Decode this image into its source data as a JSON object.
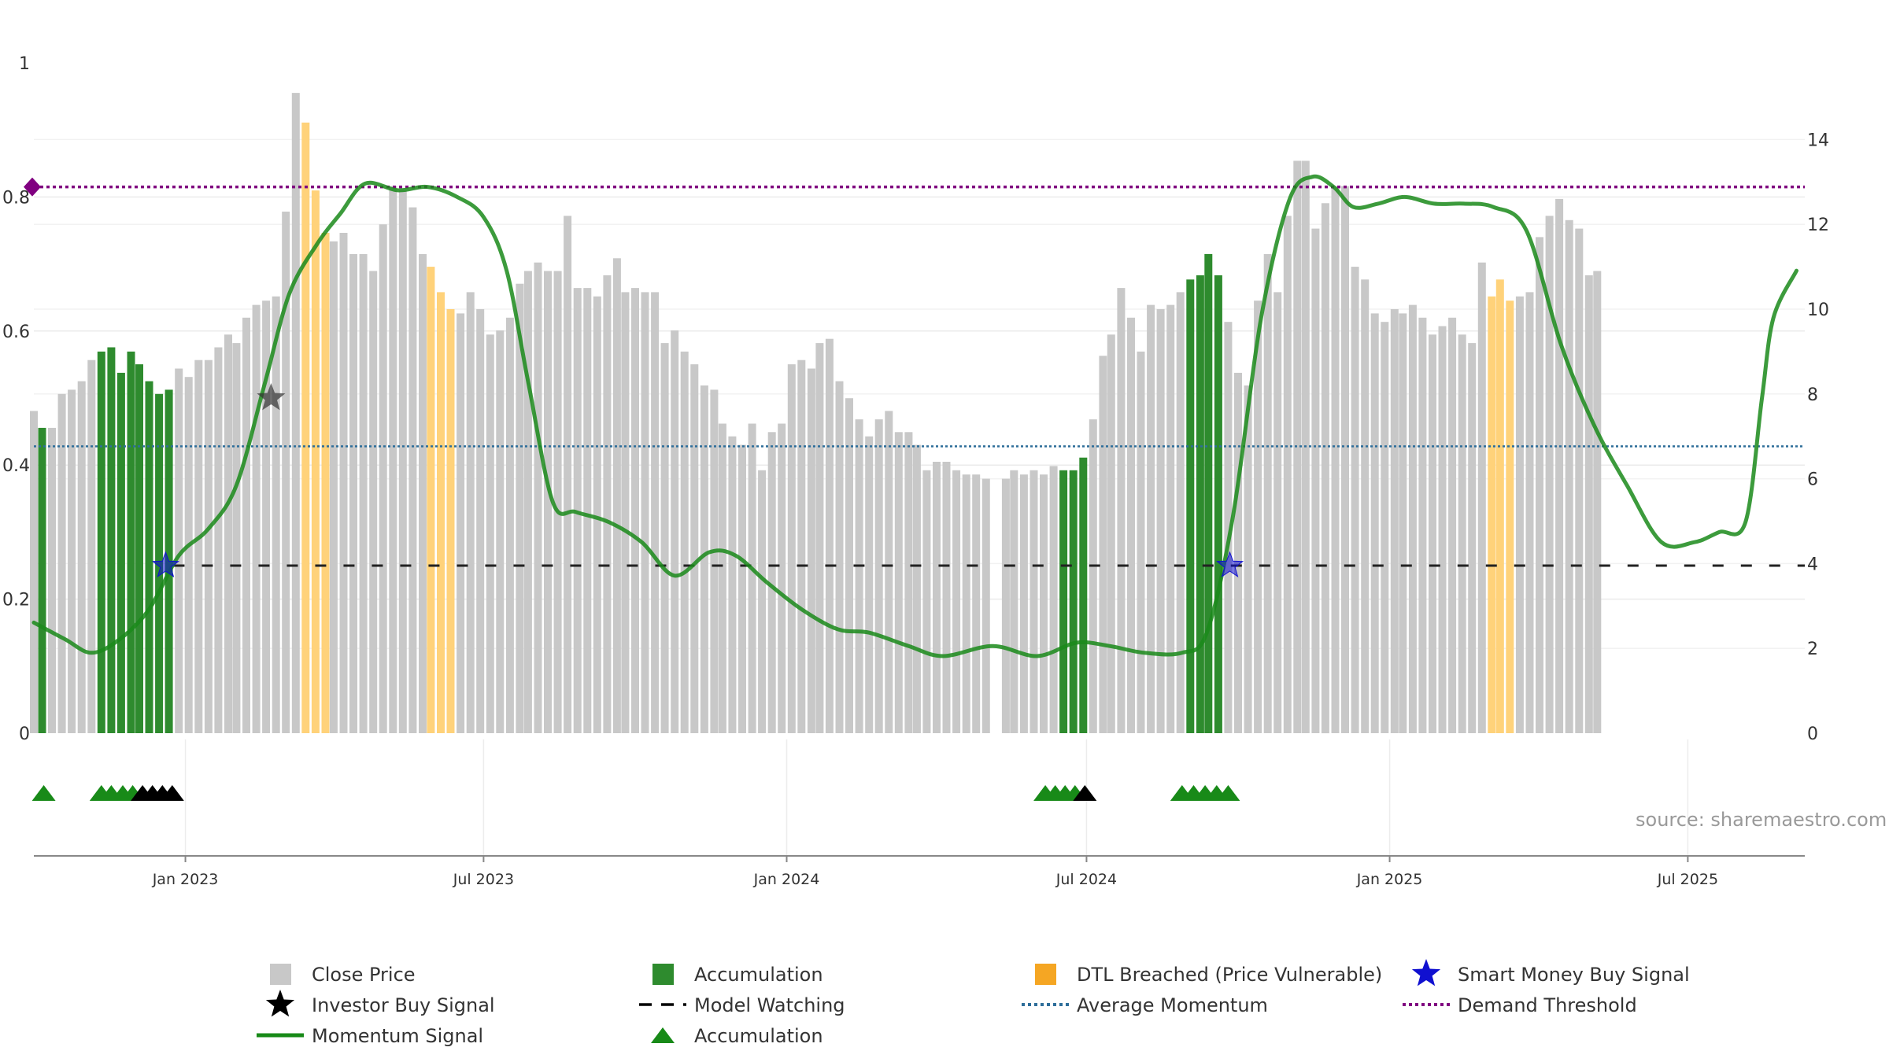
{
  "chart_data": {
    "type": "bar",
    "title": "",
    "source_label": "source: sharemaestro.com",
    "colors": {
      "close_price": "#c8c8c8",
      "accumulation": "#2e8b2e",
      "dtl_breached": "#ffd27a",
      "momentum": "#1a8a1a",
      "model_watching": "#222222",
      "average_momentum": "#2e6e9a",
      "demand_threshold": "#800080",
      "smart_money": "#1010d0",
      "investor_buy": "#333333"
    },
    "left_axis": {
      "ylim": [
        0,
        1
      ],
      "ticks": [
        "0",
        "0.2",
        "0.4",
        "0.6",
        "0.8",
        "1"
      ]
    },
    "right_axis": {
      "ylim": [
        0,
        15.8
      ],
      "ticks": [
        "0",
        "2",
        "4",
        "6",
        "8",
        "10",
        "12",
        "14"
      ]
    },
    "x_axis": {
      "start": "2022-10-01",
      "end": "2025-09-10",
      "ticks": [
        {
          "date": "2023-01-01",
          "label": "Jan 2023"
        },
        {
          "date": "2023-07-01",
          "label": "Jul 2023"
        },
        {
          "date": "2024-01-01",
          "label": "Jan 2024"
        },
        {
          "date": "2024-07-01",
          "label": "Jul 2024"
        },
        {
          "date": "2025-01-01",
          "label": "Jan 2025"
        },
        {
          "date": "2025-07-01",
          "label": "Jul 2025"
        }
      ]
    },
    "weekly_close": {
      "start": "2022-10-01",
      "step_days": 5.9,
      "values": [
        7.6,
        7.2,
        7.2,
        8.0,
        8.1,
        8.3,
        8.8,
        9.0,
        9.1,
        8.5,
        9.0,
        8.7,
        8.3,
        8.0,
        8.1,
        8.6,
        8.4,
        8.8,
        8.8,
        9.1,
        9.4,
        9.2,
        9.8,
        10.1,
        10.2,
        10.3,
        12.3,
        15.1,
        14.4,
        12.8,
        11.8,
        11.6,
        11.8,
        11.3,
        11.3,
        10.9,
        12.0,
        12.9,
        12.8,
        12.4,
        11.3,
        11.0,
        10.4,
        10.0,
        9.9,
        10.4,
        10.0,
        9.4,
        9.5,
        9.8,
        10.6,
        10.9,
        11.1,
        10.9,
        10.9,
        12.2,
        10.5,
        10.5,
        10.3,
        10.8,
        11.2,
        10.4,
        10.5,
        10.4,
        10.4,
        9.2,
        9.5,
        9.0,
        8.7,
        8.2,
        8.1,
        7.3,
        7.0,
        6.8,
        7.3,
        6.2,
        7.1,
        7.3,
        8.7,
        8.8,
        8.6,
        9.2,
        9.3,
        8.3,
        7.9,
        7.4,
        7.0,
        7.4,
        7.6,
        7.1,
        7.1,
        6.8,
        6.2,
        6.4,
        6.4,
        6.2,
        6.1,
        6.1,
        6.0,
        5.9,
        6.0,
        6.2,
        6.1,
        6.2,
        6.1,
        6.3,
        6.2,
        6.2,
        6.5,
        7.4,
        8.9,
        9.4,
        10.5,
        9.8,
        9.0,
        10.1,
        10.0,
        10.1,
        10.4,
        10.7,
        10.8,
        11.3,
        10.8,
        9.7,
        8.5,
        8.2,
        10.2,
        11.3,
        10.4,
        12.2,
        13.5,
        13.5,
        11.9,
        12.5,
        12.9,
        12.9,
        11.0,
        10.7,
        9.9,
        9.7,
        10.0,
        9.9,
        10.1,
        9.8,
        9.4,
        9.6,
        9.8,
        9.4,
        9.2,
        11.1,
        10.3,
        10.7,
        10.2,
        10.3,
        10.4,
        11.7,
        12.2,
        12.6,
        12.1,
        11.9,
        10.8,
        10.9
      ],
      "gap_dates": [
        "2024-05-05"
      ]
    },
    "accumulation_spans": [
      [
        "2022-10-05",
        "2022-10-12"
      ],
      [
        "2022-11-10",
        "2022-12-26"
      ],
      [
        "2024-06-12",
        "2024-07-01"
      ],
      [
        "2024-08-28",
        "2024-09-25"
      ]
    ],
    "dtl_spans": [
      [
        "2023-03-15",
        "2023-04-01"
      ],
      [
        "2023-05-27",
        "2023-06-12"
      ],
      [
        "2025-03-01",
        "2025-03-16"
      ]
    ],
    "momentum": {
      "x": [
        "2022-10-01",
        "2022-10-20",
        "2022-11-05",
        "2022-11-22",
        "2022-12-10",
        "2022-12-28",
        "2023-01-15",
        "2023-02-01",
        "2023-02-18",
        "2023-03-05",
        "2023-03-22",
        "2023-04-05",
        "2023-04-20",
        "2023-05-10",
        "2023-05-28",
        "2023-06-15",
        "2023-07-01",
        "2023-07-15",
        "2023-07-28",
        "2023-08-12",
        "2023-08-26",
        "2023-09-15",
        "2023-10-05",
        "2023-10-25",
        "2023-11-15",
        "2023-12-01",
        "2023-12-20",
        "2024-01-10",
        "2024-02-01",
        "2024-02-20",
        "2024-03-15",
        "2024-04-05",
        "2024-05-05",
        "2024-06-01",
        "2024-06-25",
        "2024-07-15",
        "2024-08-05",
        "2024-08-28",
        "2024-09-12",
        "2024-09-28",
        "2024-10-15",
        "2024-11-01",
        "2024-11-15",
        "2024-11-28",
        "2024-12-10",
        "2024-12-25",
        "2025-01-10",
        "2025-01-28",
        "2025-02-15",
        "2025-03-05",
        "2025-03-25",
        "2025-04-15",
        "2025-05-05",
        "2025-05-25",
        "2025-06-15",
        "2025-07-05",
        "2025-07-20",
        "2025-08-05",
        "2025-08-15",
        "2025-08-22",
        "2025-09-05"
      ],
      "y": [
        0.165,
        0.14,
        0.12,
        0.14,
        0.185,
        0.265,
        0.305,
        0.37,
        0.52,
        0.655,
        0.73,
        0.775,
        0.82,
        0.81,
        0.815,
        0.8,
        0.77,
        0.69,
        0.525,
        0.345,
        0.33,
        0.315,
        0.285,
        0.235,
        0.27,
        0.265,
        0.225,
        0.185,
        0.155,
        0.15,
        0.13,
        0.115,
        0.13,
        0.115,
        0.135,
        0.13,
        0.12,
        0.12,
        0.15,
        0.325,
        0.62,
        0.795,
        0.83,
        0.815,
        0.785,
        0.79,
        0.8,
        0.79,
        0.79,
        0.785,
        0.75,
        0.58,
        0.46,
        0.37,
        0.285,
        0.285,
        0.3,
        0.315,
        0.5,
        0.62,
        0.69
      ]
    },
    "average_momentum": 0.428,
    "demand_threshold": 0.815,
    "model_watching": {
      "y": 0.25,
      "gap_from": "2024-05-01",
      "gap_to": "2024-05-12"
    },
    "smart_money_buy_signals": [
      {
        "date": "2022-12-20",
        "y": 0.25
      },
      {
        "date": "2024-09-26",
        "y": 0.25
      }
    ],
    "investor_buy_signals": [
      {
        "date": "2023-02-22",
        "y": 0.5
      }
    ],
    "accumulation_triangles": {
      "green": [
        "2022-10-07",
        "2022-11-11",
        "2022-11-17",
        "2022-11-24",
        "2022-11-30",
        "2024-06-06",
        "2024-06-12",
        "2024-06-18",
        "2024-06-24",
        "2024-08-28",
        "2024-09-04",
        "2024-09-11",
        "2024-09-18",
        "2024-09-25"
      ],
      "black": [
        "2022-12-06",
        "2022-12-12",
        "2022-12-18",
        "2022-12-24",
        "2024-06-30"
      ]
    },
    "legend": [
      {
        "label": "Close Price",
        "symbol": "grey-square"
      },
      {
        "label": "Accumulation",
        "symbol": "green-square"
      },
      {
        "label": "DTL Breached (Price Vulnerable)",
        "symbol": "orange-square"
      },
      {
        "label": "Smart Money Buy Signal",
        "symbol": "blue-star"
      },
      {
        "label": "Investor Buy Signal",
        "symbol": "black-star"
      },
      {
        "label": "Model Watching",
        "symbol": "black-dash"
      },
      {
        "label": "Average Momentum",
        "symbol": "blue-dot"
      },
      {
        "label": "Demand Threshold",
        "symbol": "purple-dot"
      },
      {
        "label": "Momentum Signal",
        "symbol": "green-line"
      },
      {
        "label": "Accumulation",
        "symbol": "green-triangle"
      }
    ]
  }
}
